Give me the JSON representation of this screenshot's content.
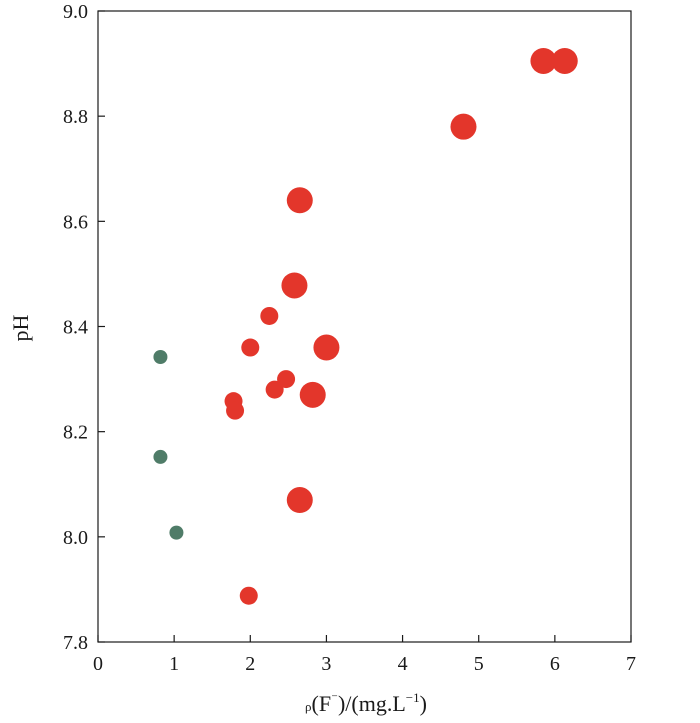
{
  "chart_data": {
    "type": "scatter",
    "xlabel": "ρ(F⁻)/(mg.L⁻¹)",
    "xlabel_parts": {
      "rho": "ρ",
      "ion_open": "(F",
      "ion_charge": "⁻",
      "ion_close": ")",
      "unit_base": "/(mg.L",
      "unit_exp": "−1",
      "unit_close": ")"
    },
    "ylabel": "pH",
    "xlim": [
      0,
      7
    ],
    "ylim": [
      7.8,
      9.0
    ],
    "xticks": [
      "0",
      "1",
      "2",
      "3",
      "4",
      "5",
      "6",
      "7"
    ],
    "yticks": [
      "7.8",
      "8.0",
      "8.2",
      "8.4",
      "8.6",
      "8.8",
      "9.0"
    ],
    "grid": false,
    "colors": {
      "red": "#e3362b",
      "green": "#4f7c68"
    },
    "series": [
      {
        "color": "red",
        "points": [
          {
            "x": 5.85,
            "y": 8.905,
            "size": "large"
          },
          {
            "x": 6.13,
            "y": 8.905,
            "size": "large"
          },
          {
            "x": 4.8,
            "y": 8.78,
            "size": "large"
          },
          {
            "x": 2.65,
            "y": 8.64,
            "size": "large"
          },
          {
            "x": 2.58,
            "y": 8.478,
            "size": "large"
          },
          {
            "x": 3.0,
            "y": 8.36,
            "size": "large"
          },
          {
            "x": 2.82,
            "y": 8.27,
            "size": "large"
          },
          {
            "x": 2.65,
            "y": 8.07,
            "size": "large"
          },
          {
            "x": 2.25,
            "y": 8.42,
            "size": "medium"
          },
          {
            "x": 2.0,
            "y": 8.36,
            "size": "medium"
          },
          {
            "x": 2.47,
            "y": 8.3,
            "size": "medium"
          },
          {
            "x": 2.32,
            "y": 8.28,
            "size": "medium"
          },
          {
            "x": 1.78,
            "y": 8.258,
            "size": "medium"
          },
          {
            "x": 1.8,
            "y": 8.24,
            "size": "medium"
          },
          {
            "x": 1.98,
            "y": 7.888,
            "size": "medium"
          }
        ]
      },
      {
        "color": "green",
        "points": [
          {
            "x": 0.82,
            "y": 8.342,
            "size": "small"
          },
          {
            "x": 0.82,
            "y": 8.152,
            "size": "small"
          },
          {
            "x": 1.03,
            "y": 8.008,
            "size": "small"
          }
        ]
      }
    ]
  }
}
